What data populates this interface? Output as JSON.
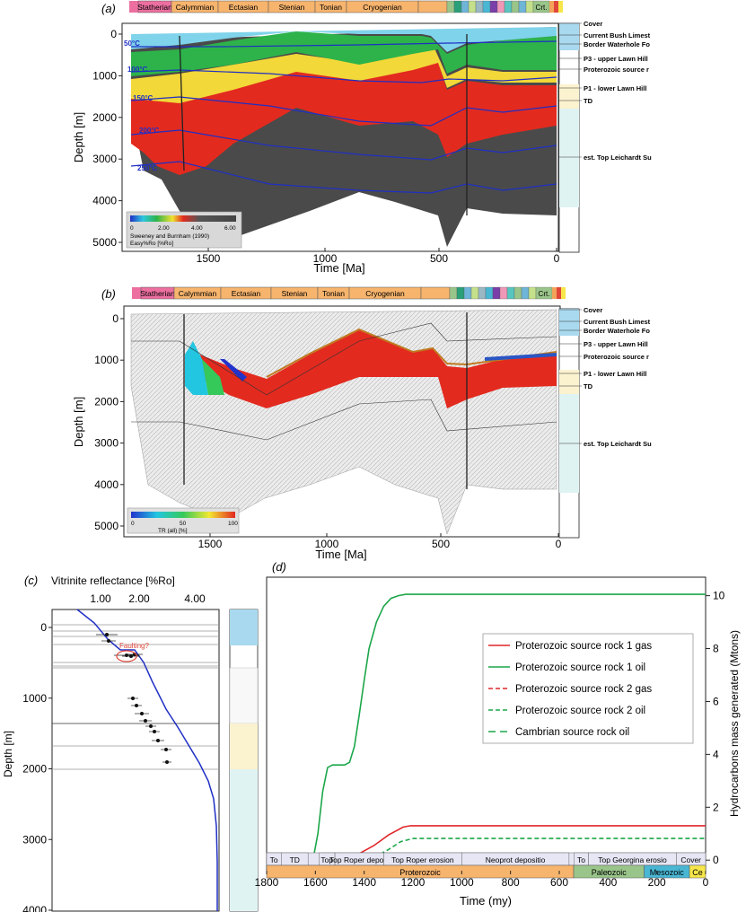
{
  "colors": {
    "statherian": "#ec6fa0",
    "proterozoic": "#f7b46d",
    "paleozoic": "#9ac58a",
    "mesozoic": "#49b7d4",
    "cenozoic": "#f6e64a",
    "water": "#a9d9ef",
    "grey": "#4a4a4a",
    "light": "#ececec",
    "blue": "#1f2fc4",
    "gas1": "#e0262a",
    "oil1": "#1ca64a",
    "faulting": "#e0473a"
  },
  "panel_a": {
    "label": "(a)",
    "periods": [
      "Statherian",
      "Calymmian",
      "Ectasian",
      "Stenian",
      "Tonian",
      "Cryogenian"
    ],
    "crt_label": "Crt.",
    "ylabel": "Depth [m]",
    "xlabel": "Time [Ma]",
    "yticks": [
      "0",
      "1000",
      "2000",
      "3000",
      "4000",
      "5000"
    ],
    "xticks": [
      "1500",
      "1000",
      "500",
      "0"
    ],
    "isotherms": [
      "50°C",
      "100°C",
      "150°C",
      "200°C",
      "250°C"
    ],
    "legend_ticks": [
      "0",
      "2.00",
      "4.00",
      "6.00"
    ],
    "legend_line1": "Sweeney and Burnham (1990)",
    "legend_line2": "Easy%Ro [%Ro]",
    "strat": [
      "Cover",
      "Current Bush Limest",
      "Border Waterhole Fo",
      "P3 - upper Lawn Hill",
      "Proterozoic source r",
      "P1 - lower Lawn Hill",
      "TD",
      "est. Top Leichardt Su"
    ]
  },
  "panel_b": {
    "label": "(b)",
    "periods": [
      "Statherian",
      "Calymmian",
      "Ectasian",
      "Stenian",
      "Tonian",
      "Cryogenian"
    ],
    "crt_label": "Crt.",
    "ylabel": "Depth [m]",
    "xlabel": "Time [Ma]",
    "yticks": [
      "0",
      "1000",
      "2000",
      "3000",
      "4000",
      "5000"
    ],
    "xticks": [
      "1500",
      "1000",
      "500",
      "0"
    ],
    "legend_ticks": [
      "0",
      "50",
      "100"
    ],
    "legend_title": "TR (all) [%]",
    "strat": [
      "Cover",
      "Current Bush Limest",
      "Border Waterhole Fo",
      "P3 - upper Lawn Hill",
      "Proterozoic source r",
      "P1 - lower Lawn Hill",
      "TD",
      "est. Top Leichardt Su"
    ]
  },
  "panel_c": {
    "label": "(c)",
    "title": "Vitrinite reflectance [%Ro]",
    "xticks": [
      "1.00",
      "2.00",
      "4.00"
    ],
    "ylabel": "Depth [m]",
    "yticks": [
      "0",
      "1000",
      "2000",
      "3000",
      "4000"
    ],
    "annotation": "Faulting?"
  },
  "panel_d": {
    "label": "(d)",
    "ylabel": "Hydrocarbons mass generated (Mtons)",
    "xlabel": "Time (my)",
    "xticks": [
      "1800",
      "1600",
      "1400",
      "1200",
      "1000",
      "800",
      "600",
      "400",
      "200",
      "0"
    ],
    "yticks": [
      "0",
      "2",
      "4",
      "6",
      "8",
      "10"
    ],
    "events": [
      "To",
      "TD",
      "Top",
      "Top Roper deposi",
      "Top Roper erosion",
      "Neoprot depositio",
      "To",
      "Top Georgina erosio",
      "Cover"
    ],
    "eras": [
      "Proterozoic",
      "Paleozoic",
      "Mesozoic",
      "Ce"
    ]
  },
  "chart_data": {
    "type": "line",
    "title": "",
    "xlabel": "Time (my)",
    "ylabel": "Hydrocarbons mass generated (Mtons)",
    "xlim": [
      1800,
      0
    ],
    "ylim": [
      -0.4,
      10.7
    ],
    "series": [
      {
        "name": "Proterozoic source rock 1 gas",
        "color": "#e0262a",
        "dash": "",
        "x": [
          1800,
          1610,
          1580,
          1500,
          1420,
          1360,
          1300,
          1240,
          1210,
          1000,
          500,
          0
        ],
        "y": [
          0,
          0,
          0.05,
          0.12,
          0.25,
          0.55,
          0.95,
          1.25,
          1.3,
          1.3,
          1.3,
          1.3
        ]
      },
      {
        "name": "Proterozoic source rock 1 oil",
        "color": "#1ca64a",
        "dash": "",
        "x": [
          1800,
          1610,
          1590,
          1570,
          1550,
          1530,
          1500,
          1480,
          1460,
          1440,
          1420,
          1400,
          1380,
          1350,
          1320,
          1290,
          1260,
          1230,
          1200,
          1000,
          500,
          0
        ],
        "y": [
          0,
          0,
          1,
          2.6,
          3.5,
          3.6,
          3.6,
          3.6,
          3.7,
          4.3,
          5.5,
          6.8,
          8,
          9,
          9.6,
          9.9,
          10,
          10.05,
          10.05,
          10.05,
          10.05,
          10.05
        ]
      },
      {
        "name": "Proterozoic source rock 2 gas",
        "color": "#e0262a",
        "dash": "5,3",
        "x": [
          1800,
          1400,
          1300,
          1200,
          800,
          600,
          500,
          0
        ],
        "y": [
          0,
          0,
          0.03,
          0.05,
          0.05,
          0.05,
          0.06,
          0.06
        ]
      },
      {
        "name": "Proterozoic source rock 2 oil",
        "color": "#1ca64a",
        "dash": "5,3",
        "x": [
          1800,
          1400,
          1350,
          1300,
          1250,
          1200,
          1000,
          500,
          0
        ],
        "y": [
          0,
          0,
          0.15,
          0.4,
          0.7,
          0.82,
          0.82,
          0.82,
          0.82
        ]
      },
      {
        "name": "Cambrian source rock oil",
        "color": "#1ca64a",
        "dash": "8,5",
        "x": [
          1800,
          600,
          560,
          500,
          460,
          400,
          300,
          200,
          0
        ],
        "y": [
          0,
          0,
          0,
          0.02,
          0.05,
          0.1,
          0.12,
          0.12,
          0.12
        ]
      }
    ]
  }
}
